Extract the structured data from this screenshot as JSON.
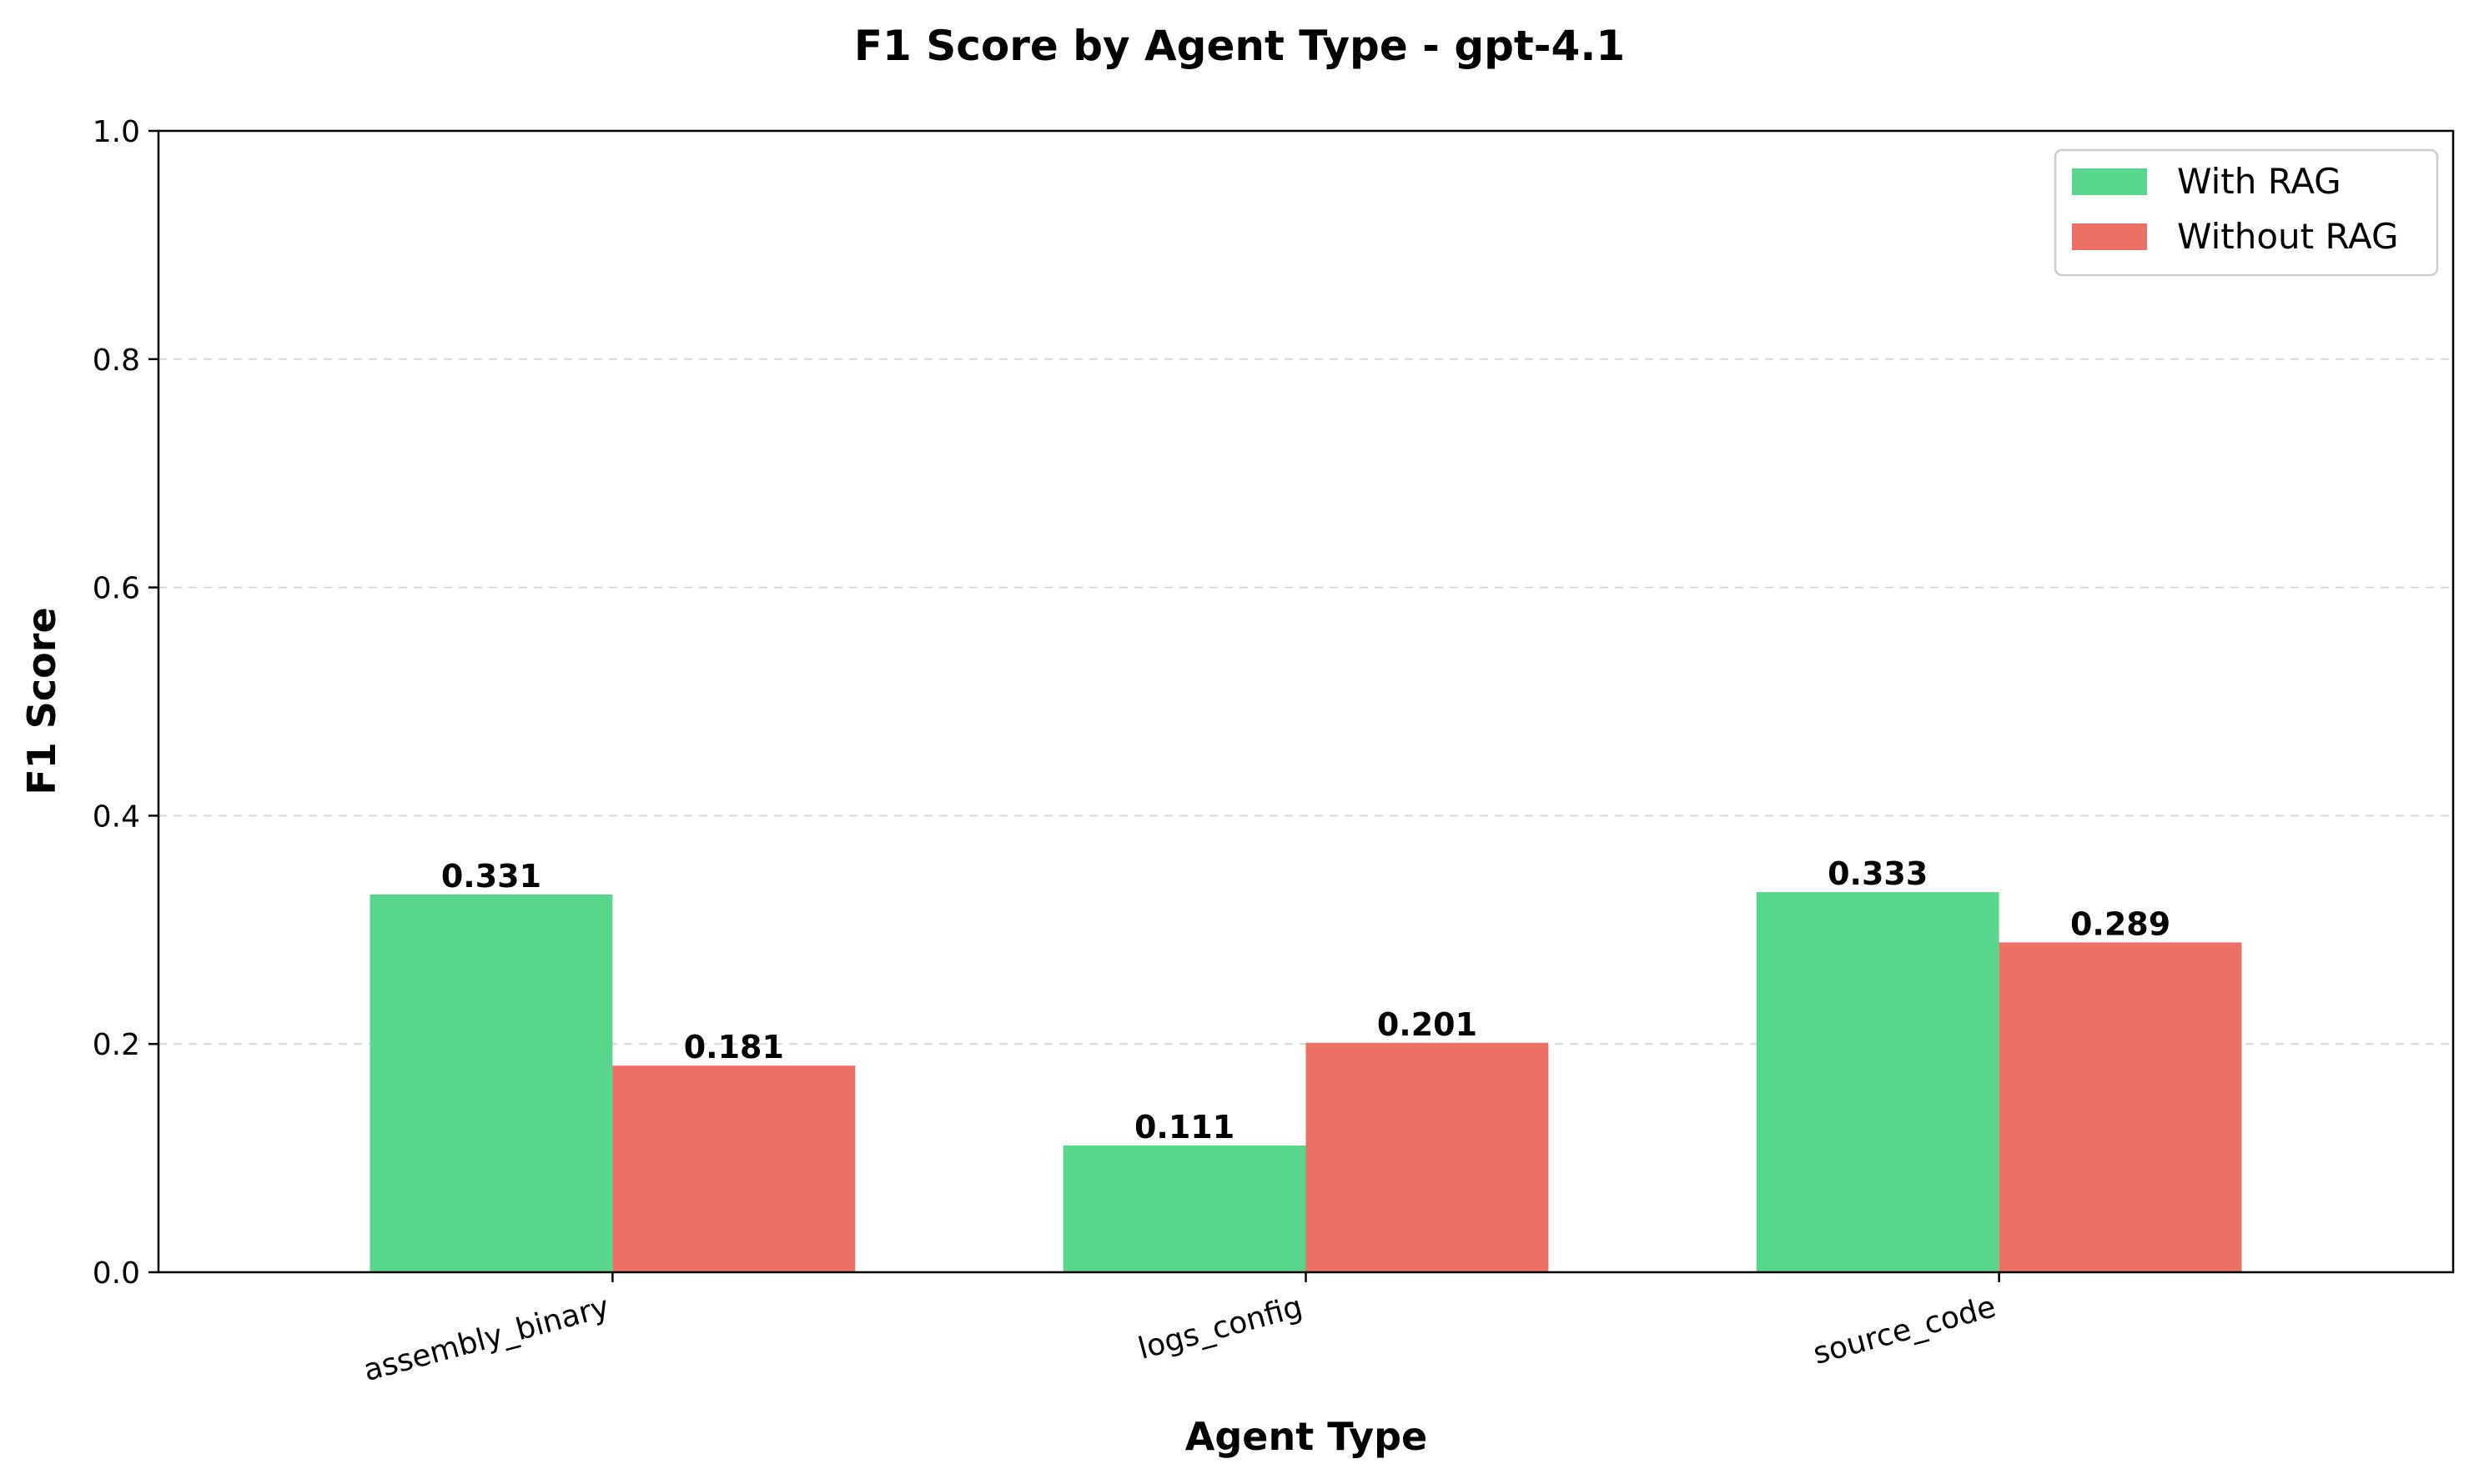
{
  "chart_data": {
    "type": "bar",
    "title": "F1 Score by Agent Type - gpt-4.1",
    "xlabel": "Agent Type",
    "ylabel": "F1 Score",
    "ylim": [
      0,
      1.0
    ],
    "yticks": [
      "0.0",
      "0.2",
      "0.4",
      "0.6",
      "0.8",
      "1.0"
    ],
    "grid": "y-dashed",
    "legend_position": "top-right",
    "categories": [
      "assembly_binary",
      "logs_config",
      "source_code"
    ],
    "series": [
      {
        "name": "With RAG",
        "color": "#58d68d",
        "values": [
          0.331,
          0.111,
          0.333
        ],
        "labels": [
          "0.331",
          "0.111",
          "0.333"
        ]
      },
      {
        "name": "Without RAG",
        "color": "#ec7063",
        "values": [
          0.181,
          0.201,
          0.289
        ],
        "labels": [
          "0.181",
          "0.201",
          "0.289"
        ]
      }
    ]
  }
}
